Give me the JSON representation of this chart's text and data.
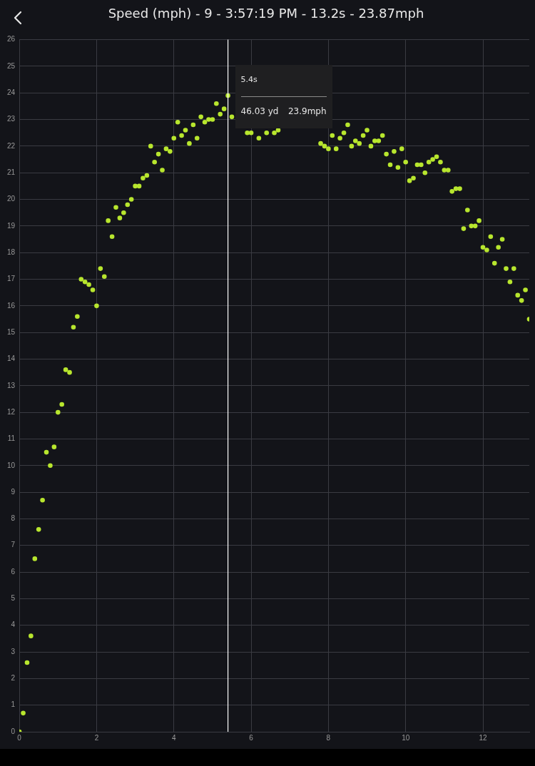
{
  "chart_data": {
    "type": "scatter",
    "title": "Speed (mph) - 9 - 3:57:19 PM - 13.2s - 23.87mph",
    "x": [
      0,
      0.1,
      0.2,
      0.3,
      0.4,
      0.5,
      0.6,
      0.7,
      0.8,
      0.9,
      1,
      1.1,
      1.2,
      1.3,
      1.4,
      1.5,
      1.6,
      1.7,
      1.8,
      1.9,
      2,
      2.1,
      2.2,
      2.3,
      2.4,
      2.5,
      2.6,
      2.7,
      2.8,
      2.9,
      3,
      3.1,
      3.2,
      3.3,
      3.4,
      3.5,
      3.6,
      3.7,
      3.8,
      3.9,
      4,
      4.1,
      4.2,
      4.3,
      4.4,
      4.5,
      4.6,
      4.7,
      4.8,
      4.9,
      5,
      5.1,
      5.2,
      5.3,
      5.4,
      5.5,
      5.6,
      5.7,
      5.8,
      5.9,
      6,
      6.1,
      6.2,
      6.3,
      6.4,
      6.5,
      6.6,
      6.7,
      6.8,
      6.9,
      7,
      7.1,
      7.2,
      7.3,
      7.4,
      7.5,
      7.6,
      7.7,
      7.8,
      7.9,
      8,
      8.1,
      8.2,
      8.3,
      8.4,
      8.5,
      8.6,
      8.7,
      8.8,
      8.9,
      9,
      9.1,
      9.2,
      9.3,
      9.4,
      9.5,
      9.6,
      9.7,
      9.8,
      9.9,
      10,
      10.1,
      10.2,
      10.3,
      10.4,
      10.5,
      10.6,
      10.7,
      10.8,
      10.9,
      11,
      11.1,
      11.2,
      11.3,
      11.4,
      11.5,
      11.6,
      11.7,
      11.8,
      11.9,
      12,
      12.1,
      12.2,
      12.3,
      12.4,
      12.5,
      12.6,
      12.7,
      12.8,
      12.9,
      13,
      13.1,
      13.2
    ],
    "series": [
      {
        "color": "#b8e62e",
        "values": [
          0,
          0.7,
          2.6,
          3.6,
          6.5,
          7.6,
          8.7,
          10.5,
          10,
          10.7,
          12,
          12.3,
          13.6,
          13.5,
          15.2,
          15.6,
          17,
          16.9,
          16.8,
          16.6,
          16,
          17.4,
          17.1,
          19.2,
          18.6,
          19.7,
          19.3,
          19.5,
          19.8,
          20,
          20.5,
          20.5,
          20.8,
          20.9,
          22,
          21.4,
          21.7,
          21.1,
          21.9,
          21.8,
          22.3,
          22.9,
          22.4,
          22.6,
          22.1,
          22.8,
          22.3,
          23.1,
          22.9,
          23,
          23,
          23.6,
          23.2,
          23.4,
          23.9,
          23.1,
          null,
          null,
          null,
          22.5,
          22.5,
          null,
          22.3,
          null,
          22.5,
          null,
          22.5,
          22.6,
          null,
          null,
          null,
          null,
          null,
          null,
          null,
          null,
          null,
          null,
          22.1,
          22,
          21.9,
          22.4,
          21.9,
          22.3,
          22.5,
          22.8,
          22,
          22.2,
          22.1,
          22.4,
          22.6,
          22,
          22.2,
          22.2,
          22.4,
          21.7,
          21.3,
          21.8,
          21.2,
          21.9,
          21.4,
          20.7,
          20.8,
          21.3,
          21.3,
          21,
          21.4,
          21.5,
          21.6,
          21.4,
          21.1,
          21.1,
          20.3,
          20.4,
          20.4,
          18.9,
          19.6,
          19,
          19,
          19.2,
          18.2,
          18.1,
          18.6,
          17.6,
          18.2,
          18.5,
          17.4,
          16.9,
          17.4,
          16.4,
          16.2,
          16.6,
          15.5
        ]
      }
    ],
    "xlim": [
      0,
      13.2
    ],
    "xticks": [
      0,
      2,
      4,
      6,
      8,
      10,
      12
    ],
    "ylim": [
      0,
      26
    ],
    "yticks": [
      0,
      1,
      2,
      3,
      4,
      5,
      6,
      7,
      8,
      9,
      10,
      11,
      12,
      13,
      14,
      15,
      16,
      17,
      18,
      19,
      20,
      21,
      22,
      23,
      24,
      25,
      26
    ],
    "grid": true,
    "marker": "circle",
    "ref_lines": [
      {
        "axis": "x",
        "value": 5.4,
        "color": "#ffffff"
      }
    ],
    "annotations": [
      "5.4s",
      "46.03 yd",
      "23.9mph"
    ]
  }
}
